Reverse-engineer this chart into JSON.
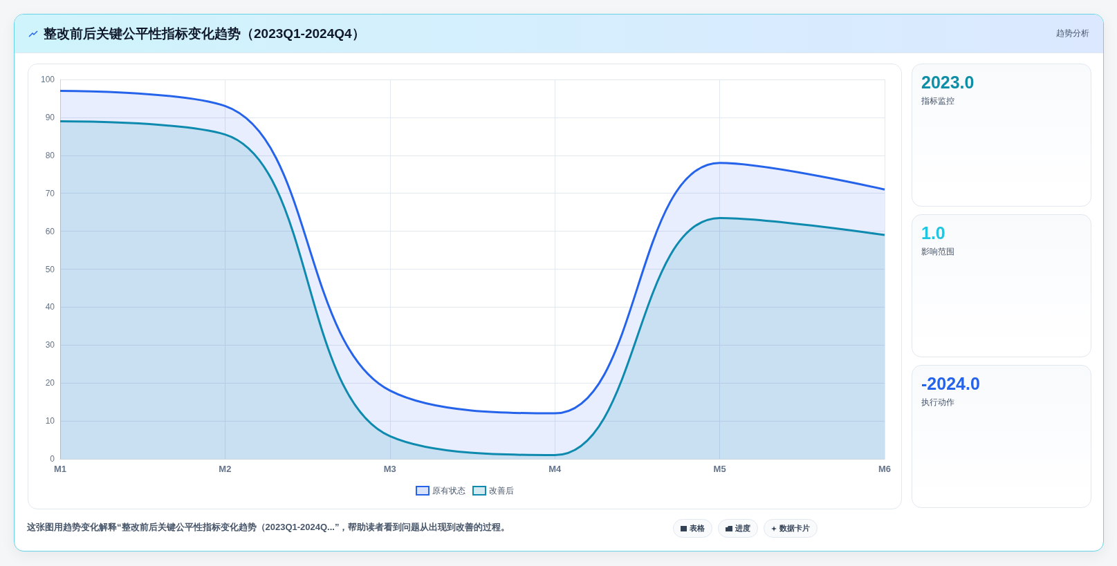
{
  "chart_data": {
    "type": "area",
    "title": "整改前后关键公平性指标变化趋势（2023Q1-2024Q4）",
    "categories": [
      "M1",
      "M2",
      "M3",
      "M4",
      "M5",
      "M6"
    ],
    "series": [
      {
        "name": "原有状态",
        "color": "#2563eb",
        "values": [
          97,
          93,
          18,
          12,
          78,
          71
        ]
      },
      {
        "name": "改善后",
        "color": "#0e8aae",
        "values": [
          89,
          85.5,
          6,
          1,
          63.5,
          59
        ]
      }
    ],
    "ylim": [
      0,
      100
    ],
    "yticks": [
      0,
      10,
      20,
      30,
      40,
      50,
      60,
      70,
      80,
      90,
      100
    ],
    "grid": true,
    "legend": "bottom",
    "annotations": [
      "趋势分析",
      "2023.0",
      "指标监控",
      "1.0",
      "影响范围",
      "-2024.0",
      "执行动作",
      "这张图用趋势变化解释“整改前后关键公平性指标变化趋势（2023Q1-2024Q...”，帮助读者看到问题从出现到改善的过程。",
      "表格",
      "进度",
      "数据卡片"
    ]
  }
}
